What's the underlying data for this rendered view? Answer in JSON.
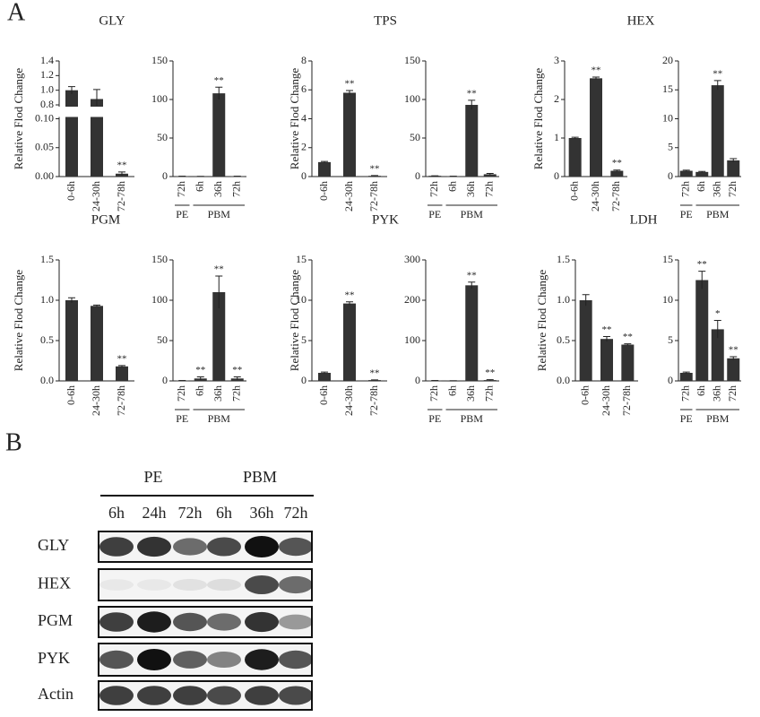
{
  "panel_labels": [
    "A",
    "B"
  ],
  "chart_data": [
    {
      "type": "bar",
      "title": "GLY",
      "y_label": "Relative Flod Change",
      "categories": [
        "0-6h",
        "24-30h",
        "72-78h"
      ],
      "values": [
        1.0,
        0.88,
        0.005
      ],
      "errors": [
        0.05,
        0.13,
        0.003
      ],
      "annotations": [
        null,
        null,
        "**"
      ],
      "color": "#333333",
      "ylim": [
        0,
        1.4
      ],
      "ybreak": [
        0.1,
        0.8
      ],
      "yticks": [
        {
          "value": 0,
          "label": "0.00"
        },
        0.05,
        {
          "value": 0.1,
          "label": "0.10"
        },
        0.8,
        {
          "value": 1,
          "label": "1.0"
        },
        1.2,
        1.4
      ]
    },
    {
      "type": "bar",
      "categories": [
        "72h",
        "6h",
        "36h",
        "72h"
      ],
      "groups": [
        {
          "name": "PE",
          "count": 1
        },
        {
          "name": "PBM",
          "count": 3
        }
      ],
      "values": [
        0.5,
        0.3,
        108,
        0.5
      ],
      "errors": [
        0,
        0,
        8,
        0
      ],
      "annotations": [
        null,
        null,
        "**",
        null
      ],
      "color": "#333333",
      "ylim": [
        0,
        150
      ],
      "yticks": [
        0,
        50,
        100,
        150
      ]
    },
    {
      "type": "bar",
      "title": "TPS",
      "y_label": "Relative Flod Change",
      "categories": [
        "0-6h",
        "24-30h",
        "72-78h"
      ],
      "values": [
        1,
        5.8,
        0.05
      ],
      "errors": [
        0.05,
        0.15,
        0.02
      ],
      "annotations": [
        null,
        "**",
        "**"
      ],
      "color": "#333333",
      "ylim": [
        0,
        8
      ],
      "yticks": [
        0,
        2,
        4,
        6,
        8
      ]
    },
    {
      "type": "bar",
      "categories": [
        "72h",
        "6h",
        "36h",
        "72h"
      ],
      "groups": [
        {
          "name": "PE",
          "count": 1
        },
        {
          "name": "PBM",
          "count": 3
        }
      ],
      "values": [
        1,
        0.5,
        93,
        3
      ],
      "errors": [
        0,
        0,
        6,
        1
      ],
      "annotations": [
        null,
        null,
        "**",
        null
      ],
      "color": "#333333",
      "ylim": [
        0,
        150
      ],
      "yticks": [
        0,
        50,
        100,
        150
      ]
    },
    {
      "type": "bar",
      "title": "HEX",
      "y_label": "Relative Flod Change",
      "categories": [
        "0-6h",
        "24-30h",
        "72-78h"
      ],
      "values": [
        1,
        2.55,
        0.15
      ],
      "errors": [
        0.02,
        0.03,
        0.02
      ],
      "annotations": [
        null,
        "**",
        "**"
      ],
      "color": "#333333",
      "ylim": [
        0,
        3
      ],
      "yticks": [
        0,
        1,
        2,
        3
      ]
    },
    {
      "type": "bar",
      "categories": [
        "72h",
        "6h",
        "36h",
        "72h"
      ],
      "groups": [
        {
          "name": "PE",
          "count": 1
        },
        {
          "name": "PBM",
          "count": 3
        }
      ],
      "values": [
        1,
        0.8,
        15.8,
        2.8
      ],
      "errors": [
        0.1,
        0.1,
        0.8,
        0.3
      ],
      "annotations": [
        null,
        null,
        "**",
        null
      ],
      "color": "#333333",
      "ylim": [
        0,
        20
      ],
      "yticks": [
        0,
        5,
        10,
        15,
        20
      ]
    },
    {
      "type": "bar",
      "title": "PGM",
      "y_label": "Relative Flod Change",
      "categories": [
        "0-6h",
        "24-30h",
        "72-78h"
      ],
      "values": [
        1.0,
        0.93,
        0.18
      ],
      "errors": [
        0.03,
        0.01,
        0.01
      ],
      "annotations": [
        null,
        null,
        "**"
      ],
      "color": "#333333",
      "ylim": [
        0,
        1.5
      ],
      "yticks": [
        {
          "value": 0,
          "label": "0.0"
        },
        0.5,
        {
          "value": 1,
          "label": "1.0"
        },
        1.5
      ]
    },
    {
      "type": "bar",
      "categories": [
        "72h",
        "6h",
        "36h",
        "72h"
      ],
      "groups": [
        {
          "name": "PE",
          "count": 1
        },
        {
          "name": "PBM",
          "count": 3
        }
      ],
      "values": [
        0.5,
        3,
        110,
        3
      ],
      "errors": [
        0,
        2,
        20,
        2
      ],
      "annotations": [
        null,
        "**",
        "**",
        "**"
      ],
      "color": "#333333",
      "ylim": [
        0,
        150
      ],
      "yticks": [
        0,
        50,
        100,
        150
      ]
    },
    {
      "type": "bar",
      "title": "PYK",
      "y_label": "Relative Flod Change",
      "categories": [
        "0-6h",
        "24-30h",
        "72-78h"
      ],
      "values": [
        1,
        9.6,
        0.1
      ],
      "errors": [
        0.1,
        0.2,
        0.02
      ],
      "annotations": [
        null,
        "**",
        "**"
      ],
      "color": "#333333",
      "ylim": [
        0,
        15
      ],
      "yticks": [
        0,
        5,
        10,
        15
      ]
    },
    {
      "type": "bar",
      "categories": [
        "72h",
        "6h",
        "36h",
        "72h"
      ],
      "groups": [
        {
          "name": "PE",
          "count": 1
        },
        {
          "name": "PBM",
          "count": 3
        }
      ],
      "values": [
        1,
        0.5,
        237,
        2
      ],
      "errors": [
        0,
        0,
        8,
        1
      ],
      "annotations": [
        null,
        null,
        "**",
        "**"
      ],
      "color": "#333333",
      "ylim": [
        0,
        300
      ],
      "yticks": [
        0,
        100,
        200,
        300
      ]
    },
    {
      "type": "bar",
      "title": "LDH",
      "y_label": "Relative Flod Change",
      "categories": [
        "0-6h",
        "24-30h",
        "72-78h"
      ],
      "values": [
        1.0,
        0.52,
        0.45
      ],
      "errors": [
        0.07,
        0.03,
        0.01
      ],
      "annotations": [
        null,
        "**",
        "**"
      ],
      "color": "#333333",
      "ylim": [
        0,
        1.5
      ],
      "yticks": [
        {
          "value": 0,
          "label": "0.0"
        },
        0.5,
        {
          "value": 1,
          "label": "1.0"
        },
        1.5
      ]
    },
    {
      "type": "bar",
      "categories": [
        "72h",
        "6h",
        "36h",
        "72h"
      ],
      "groups": [
        {
          "name": "PE",
          "count": 1
        },
        {
          "name": "PBM",
          "count": 3
        }
      ],
      "values": [
        1,
        12.5,
        6.4,
        2.8
      ],
      "errors": [
        0.1,
        1.1,
        1.1,
        0.2
      ],
      "annotations": [
        null,
        "**",
        "*",
        "**"
      ],
      "color": "#333333",
      "ylim": [
        0,
        15
      ],
      "yticks": [
        0,
        5,
        10,
        15
      ]
    }
  ],
  "blot": {
    "groups": [
      {
        "name": "PE",
        "lanes": [
          "6h",
          "24h",
          "72h"
        ]
      },
      {
        "name": "PBM",
        "lanes": [
          "6h",
          "36h",
          "72h"
        ]
      }
    ],
    "rows": [
      "GLY",
      "HEX",
      "PGM",
      "PYK",
      "Actin"
    ]
  }
}
